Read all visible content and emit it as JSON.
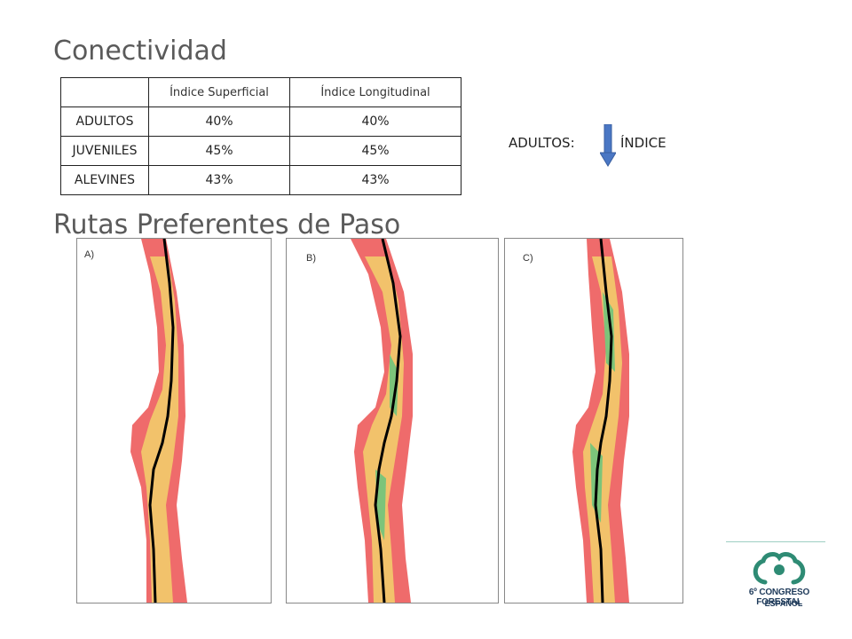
{
  "titles": {
    "connectivity": "Conectividad",
    "routes": "Rutas Preferentes de Paso"
  },
  "table": {
    "headers": [
      "",
      "Índice Superficial",
      "Índice Longitudinal"
    ],
    "rows": [
      {
        "label": "ADULTOS",
        "superficial": "40%",
        "longitudinal": "40%"
      },
      {
        "label": "JUVENILES",
        "superficial": "45%",
        "longitudinal": "45%"
      },
      {
        "label": "ALEVINES",
        "superficial": "43%",
        "longitudinal": "43%"
      }
    ]
  },
  "note": {
    "label": "ADULTOS:",
    "index": "ÍNDICE",
    "arrow_icon": "arrow-down-icon",
    "arrow_color": "#4a77c4"
  },
  "panels": [
    {
      "label": "A)"
    },
    {
      "label": "B)"
    },
    {
      "label": "C)"
    }
  ],
  "colors": {
    "habitat_red": "#ef6b6b",
    "habitat_orange": "#f2c26b",
    "habitat_green": "#7cc47a",
    "route": "#000000"
  },
  "logo": {
    "line1": "6º CONGRESO FORESTAL",
    "line2": "ESPAÑOL",
    "color": "#1e3a5a"
  }
}
